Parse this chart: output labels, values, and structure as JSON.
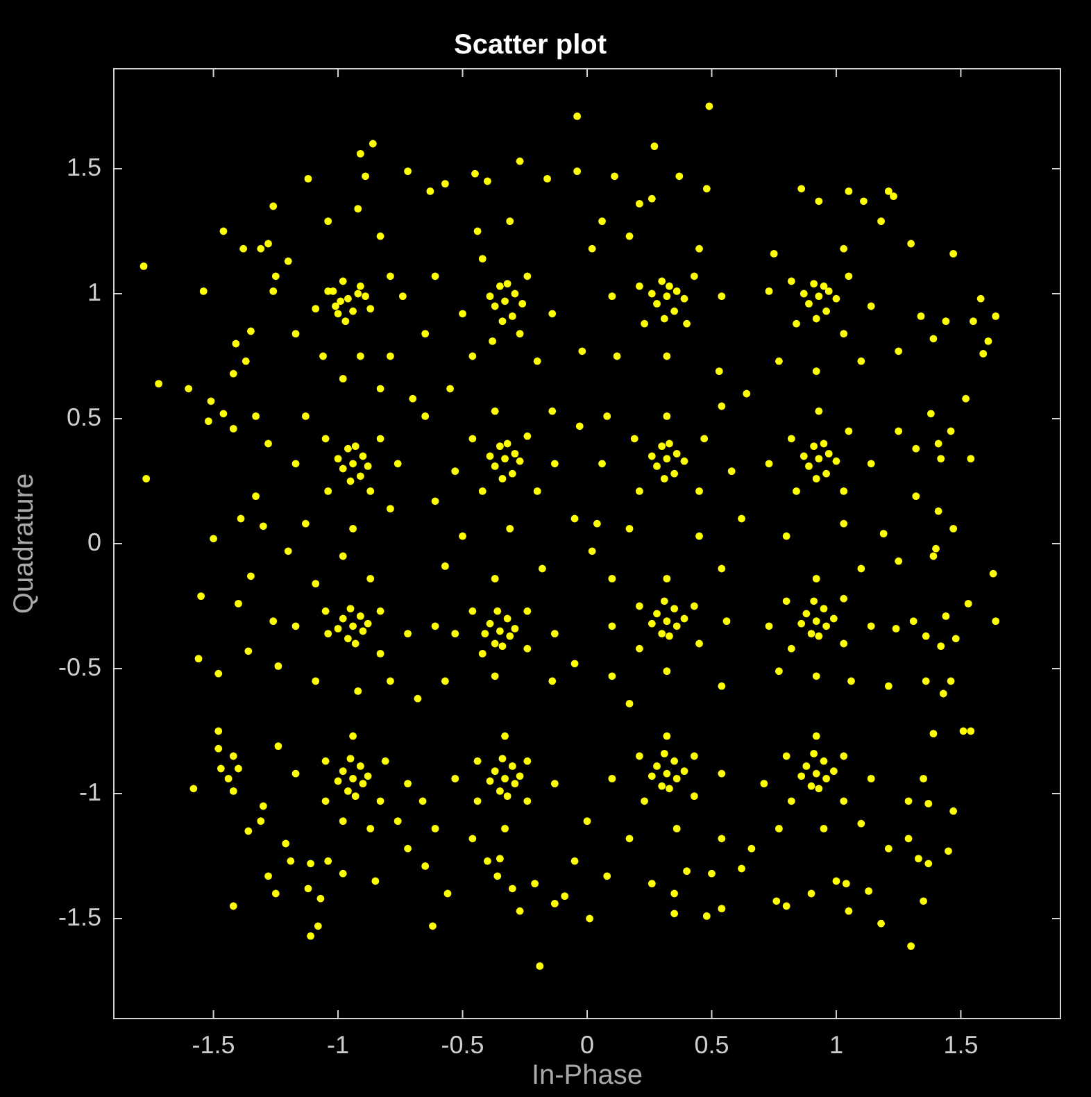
{
  "chart_data": {
    "type": "scatter",
    "title": "Scatter plot",
    "xlabel": "In-Phase",
    "ylabel": "Quadrature",
    "xlim": [
      -1.9,
      1.9
    ],
    "ylim": [
      -1.9,
      1.9
    ],
    "xticks": [
      -1.5,
      -1,
      -0.5,
      0,
      0.5,
      1,
      1.5
    ],
    "yticks": [
      -1.5,
      -1,
      -0.5,
      0,
      0.5,
      1,
      1.5
    ],
    "marker": "circle",
    "series": [
      {
        "color": "#ffff00",
        "x": [
          -0.86,
          -0.91,
          -1.12,
          -0.89,
          -0.92,
          -1.26,
          -1.46,
          -1.38,
          -1.31,
          -1.28,
          -1.78,
          -1.54,
          -1.2,
          -1.25,
          -1.04,
          -0.83,
          -0.96,
          -1.04,
          -0.91,
          -1,
          -0.87,
          -1.09,
          -0.79,
          -0.74,
          -1.26,
          -1.17,
          -1.06,
          -0.91,
          -0.79,
          -1.35,
          -1.41,
          -1.72,
          -1.6,
          -1.37,
          -1.42,
          -1.01,
          -0.92,
          -0.98,
          -0.94,
          -1.02,
          -0.89,
          -0.97,
          -0.99,
          -0.72,
          -0.45,
          -0.4,
          -0.27,
          -0.04,
          -0.16,
          -0.63,
          -0.57,
          -0.33,
          -0.42,
          -0.24,
          -0.5,
          -0.27,
          -0.38,
          -0.14,
          -0.61,
          -0.65,
          -0.31,
          -0.44,
          -0.46,
          -0.2,
          -0.55,
          -0.02,
          -0.04,
          -0.37,
          -0.29,
          -0.35,
          -0.3,
          -0.39,
          -0.26,
          -0.34,
          -0.32,
          0.27,
          0.11,
          0.37,
          0.48,
          0.26,
          0.21,
          0.32,
          0.21,
          0.43,
          0.23,
          0.4,
          0.1,
          0.54,
          0.17,
          0.45,
          0.32,
          0.12,
          0.53,
          0.64,
          0.06,
          0.02,
          0.49,
          0.28,
          0.36,
          0.3,
          0.35,
          0.26,
          0.39,
          0.31,
          0.33,
          0.86,
          1.05,
          1.21,
          1.23,
          1.11,
          0.93,
          0.93,
          0.82,
          1.05,
          0.84,
          1.03,
          1.14,
          0.73,
          0.75,
          1.03,
          1.18,
          1.3,
          1.47,
          1.58,
          1.64,
          1.55,
          1.61,
          1.59,
          1.39,
          1.44,
          1.34,
          1.25,
          1.1,
          0.92,
          0.77,
          0.89,
          0.97,
          0.91,
          0.96,
          0.87,
          1,
          0.92,
          0.95,
          -0.94,
          -1.05,
          -0.83,
          -1.04,
          -0.87,
          -1.13,
          -1.17,
          -0.76,
          -1.28,
          -1.33,
          -1.42,
          -1.52,
          -1.51,
          -1.46,
          -1.77,
          -1.33,
          -1.3,
          -1.5,
          -1.39,
          -1.13,
          -0.94,
          -0.79,
          -0.7,
          -0.83,
          -0.98,
          -0.98,
          -0.9,
          -0.96,
          -0.91,
          -1,
          -0.88,
          -0.95,
          -0.93,
          -0.33,
          -0.46,
          -0.24,
          -0.42,
          -0.2,
          -0.53,
          -0.13,
          -0.37,
          -0.14,
          -0.65,
          -0.61,
          -0.31,
          -0.05,
          -0.03,
          -0.5,
          -0.37,
          -0.29,
          -0.35,
          -0.3,
          -0.39,
          -0.27,
          -0.34,
          -0.32,
          0.32,
          0.19,
          0.47,
          0.21,
          0.45,
          0.06,
          0.58,
          0.32,
          0.08,
          0.54,
          0.17,
          0.45,
          0.62,
          0.04,
          0.28,
          0.36,
          0.3,
          0.35,
          0.26,
          0.39,
          0.31,
          0.33,
          0.93,
          0.82,
          1.05,
          0.84,
          1.03,
          0.73,
          1.14,
          0.93,
          1.25,
          1.32,
          1.41,
          1.42,
          1.54,
          1.46,
          1.38,
          1.52,
          1.32,
          1.41,
          1.47,
          1.19,
          1.03,
          0.8,
          0.89,
          0.97,
          0.91,
          0.96,
          0.87,
          1,
          0.92,
          0.95,
          -0.94,
          -1.05,
          -0.83,
          -1.04,
          -0.83,
          -1.17,
          -0.72,
          -1.09,
          -0.87,
          -1.55,
          -1.4,
          -1.35,
          -1.56,
          -1.48,
          -1.36,
          -1.26,
          -1.24,
          -1.09,
          -0.92,
          -0.79,
          -1.2,
          -0.98,
          -0.98,
          -0.9,
          -0.96,
          -0.91,
          -1,
          -0.88,
          -0.95,
          -0.93,
          -0.94,
          -1.05,
          -0.81,
          -1.05,
          -0.83,
          -1.17,
          -0.72,
          -0.94,
          -0.98,
          -1.24,
          -1.48,
          -1.48,
          -1.42,
          -1.47,
          -1.4,
          -1.44,
          -1.58,
          -1.42,
          -1.3,
          -1.31,
          -1.36,
          -1.21,
          -1.28,
          -1.25,
          -1.19,
          -1.11,
          -1.12,
          -1.07,
          -1.42,
          -1.08,
          -1.11,
          -1.04,
          -0.98,
          -0.85,
          -0.87,
          -0.76,
          -0.72,
          -0.98,
          -0.9,
          -0.96,
          -0.91,
          -1,
          -0.88,
          -0.95,
          -0.93,
          -0.35,
          -0.46,
          -0.24,
          -0.42,
          -0.24,
          -0.53,
          -0.13,
          -0.37,
          -0.57,
          -0.18,
          -0.61,
          -0.37,
          -0.14,
          -0.57,
          -0.05,
          -0.68,
          -0.39,
          -0.31,
          -0.37,
          -0.32,
          -0.41,
          -0.29,
          -0.36,
          -0.34,
          -0.33,
          -0.44,
          -0.24,
          -0.44,
          -0.24,
          -0.53,
          -0.13,
          -0.33,
          -0.33,
          -0.46,
          -0.35,
          -0.4,
          -0.65,
          -0.56,
          -0.62,
          -0.36,
          -0.27,
          -0.3,
          -0.21,
          -0.13,
          -0.09,
          0.01,
          -0.05,
          -0.61,
          -0.66,
          0,
          -0.19,
          -0.37,
          -0.29,
          -0.35,
          -0.3,
          -0.39,
          -0.27,
          -0.34,
          -0.32,
          0.32,
          0.21,
          0.43,
          0.21,
          0.45,
          0.1,
          0.56,
          0.32,
          0.1,
          0.54,
          0.32,
          0.1,
          0.54,
          0.02,
          0.17,
          0.28,
          0.36,
          0.3,
          0.35,
          0.26,
          0.39,
          0.31,
          0.33,
          0.92,
          0.8,
          1.03,
          0.82,
          1.03,
          0.73,
          1.14,
          0.92,
          1.1,
          1.25,
          1.39,
          1.4,
          1.63,
          1.53,
          1.44,
          1.64,
          1.48,
          1.36,
          1.42,
          1.31,
          1.24,
          1.36,
          1.46,
          1.43,
          1.21,
          1.06,
          0.92,
          0.77,
          0.88,
          0.96,
          0.9,
          0.95,
          0.86,
          0.99,
          0.91,
          0.93,
          0.32,
          0.21,
          0.43,
          0.23,
          0.43,
          0.1,
          0.54,
          0.32,
          0.36,
          0.17,
          0.54,
          0.08,
          0.26,
          0.35,
          0.4,
          0.35,
          0.48,
          0.54,
          0.5,
          0.62,
          0.66,
          0.28,
          0.36,
          0.3,
          0.35,
          0.26,
          0.39,
          0.31,
          0.33,
          0.92,
          0.8,
          1.03,
          0.82,
          1.03,
          0.71,
          1.14,
          0.92,
          0.95,
          1.1,
          0.77,
          1.21,
          1.29,
          1.37,
          1.47,
          1.45,
          1.33,
          1.37,
          1.35,
          1.13,
          1.04,
          1,
          0.9,
          1.05,
          1.18,
          1.3,
          0.8,
          0.76,
          1.29,
          1.51,
          1.54,
          1.39,
          1.35,
          0.88,
          0.96,
          0.9,
          0.95,
          0.86,
          0.99,
          0.91,
          0.93
        ],
        "values": [
          1.6,
          1.56,
          1.46,
          1.47,
          1.34,
          1.35,
          1.25,
          1.18,
          1.18,
          1.2,
          1.11,
          1.01,
          1.13,
          1.07,
          1.29,
          1.23,
          0.98,
          1.01,
          1.03,
          0.92,
          0.94,
          0.94,
          1.07,
          0.99,
          1.01,
          0.84,
          0.75,
          0.75,
          0.75,
          0.85,
          0.8,
          0.64,
          0.62,
          0.73,
          0.68,
          0.95,
          1,
          1.05,
          0.93,
          1.01,
          0.99,
          0.89,
          0.97,
          1.49,
          1.48,
          1.45,
          1.53,
          1.49,
          1.46,
          1.41,
          1.44,
          0.97,
          1.14,
          1.07,
          0.92,
          0.84,
          0.81,
          0.92,
          1.07,
          0.84,
          1.29,
          1.25,
          0.75,
          0.73,
          0.62,
          0.77,
          1.71,
          0.95,
          1,
          1.03,
          0.91,
          0.99,
          0.96,
          0.89,
          1.04,
          1.59,
          1.47,
          1.47,
          1.42,
          1.38,
          1.36,
          0.99,
          1.03,
          1.07,
          0.88,
          0.88,
          0.99,
          0.99,
          1.23,
          1.18,
          0.75,
          0.75,
          0.69,
          0.6,
          1.29,
          1.18,
          1.75,
          0.96,
          1.01,
          1.05,
          0.93,
          1,
          0.98,
          0.9,
          1.03,
          1.42,
          1.41,
          1.41,
          1.39,
          1.37,
          1.37,
          0.99,
          1.05,
          1.07,
          0.88,
          0.84,
          0.95,
          1.01,
          1.16,
          1.18,
          1.29,
          1.2,
          1.16,
          0.98,
          0.91,
          0.89,
          0.81,
          0.76,
          0.82,
          0.89,
          0.91,
          0.77,
          0.73,
          0.69,
          0.73,
          0.96,
          1.01,
          1.04,
          0.93,
          1,
          0.98,
          0.9,
          1.03,
          0.32,
          0.42,
          0.42,
          0.21,
          0.21,
          0.51,
          0.32,
          0.32,
          0.4,
          0.51,
          0.46,
          0.49,
          0.57,
          0.52,
          0.26,
          0.19,
          0.07,
          0.02,
          0.1,
          0.08,
          0.06,
          0.14,
          0.58,
          0.62,
          0.66,
          0.3,
          0.35,
          0.38,
          0.27,
          0.34,
          0.31,
          0.25,
          0.39,
          0.34,
          0.42,
          0.43,
          0.21,
          0.21,
          0.29,
          0.32,
          0.53,
          0.53,
          0.51,
          0.17,
          0.06,
          0.1,
          0.47,
          0.03,
          0.31,
          0.36,
          0.39,
          0.28,
          0.35,
          0.33,
          0.26,
          0.4,
          0.34,
          0.42,
          0.42,
          0.21,
          0.21,
          0.32,
          0.29,
          0.51,
          0.51,
          0.55,
          0.06,
          0.03,
          0.1,
          0.08,
          0.31,
          0.36,
          0.39,
          0.28,
          0.35,
          0.33,
          0.26,
          0.4,
          0.34,
          0.42,
          0.45,
          0.21,
          0.21,
          0.32,
          0.32,
          0.53,
          0.45,
          0.38,
          0.4,
          0.34,
          0.34,
          0.45,
          0.52,
          0.58,
          0.19,
          0.13,
          0.06,
          0.04,
          0.08,
          0.03,
          0.31,
          0.36,
          0.39,
          0.28,
          0.35,
          0.33,
          0.26,
          0.4,
          -0.33,
          -0.27,
          -0.27,
          -0.36,
          -0.44,
          -0.33,
          -0.36,
          -0.16,
          -0.14,
          -0.21,
          -0.24,
          -0.13,
          -0.46,
          -0.52,
          -0.43,
          -0.31,
          -0.49,
          -0.55,
          -0.59,
          -0.55,
          -0.03,
          -0.05,
          -0.3,
          -0.35,
          -0.38,
          -0.29,
          -0.34,
          -0.32,
          -0.26,
          -0.4,
          -0.94,
          -0.87,
          -0.87,
          -1.03,
          -1.03,
          -0.92,
          -0.96,
          -0.77,
          -1.11,
          -0.81,
          -0.75,
          -0.82,
          -0.85,
          -0.9,
          -0.9,
          -0.94,
          -0.98,
          -0.99,
          -1.05,
          -1.11,
          -1.15,
          -1.2,
          -1.33,
          -1.4,
          -1.27,
          -1.28,
          -1.38,
          -1.42,
          -1.45,
          -1.53,
          -1.57,
          -1.27,
          -1.32,
          -1.35,
          -1.14,
          -1.11,
          -1.22,
          -0.91,
          -0.96,
          -0.99,
          -0.89,
          -0.95,
          -0.93,
          -0.86,
          -1.01,
          -0.35,
          -0.27,
          -0.27,
          -0.44,
          -0.42,
          -0.36,
          -0.36,
          -0.14,
          -0.09,
          -0.1,
          -0.33,
          -0.53,
          -0.55,
          -0.55,
          -0.48,
          -0.62,
          -0.32,
          -0.37,
          -0.4,
          -0.3,
          -0.36,
          -0.34,
          -0.27,
          -0.41,
          -0.94,
          -0.87,
          -0.87,
          -1.03,
          -1.03,
          -0.94,
          -0.96,
          -0.77,
          -1.14,
          -1.18,
          -1.26,
          -1.27,
          -1.29,
          -1.4,
          -1.53,
          -1.33,
          -1.47,
          -1.38,
          -1.36,
          -1.44,
          -1.41,
          -1.5,
          -1.27,
          -1.14,
          -1.03,
          -1.11,
          -1.69,
          -0.91,
          -0.96,
          -0.99,
          -0.89,
          -0.95,
          -0.93,
          -0.86,
          -1.01,
          -0.31,
          -0.25,
          -0.25,
          -0.42,
          -0.4,
          -0.33,
          -0.31,
          -0.14,
          -0.14,
          -0.1,
          -0.51,
          -0.53,
          -0.57,
          -0.03,
          -0.64,
          -0.28,
          -0.33,
          -0.36,
          -0.26,
          -0.32,
          -0.3,
          -0.23,
          -0.37,
          -0.31,
          -0.23,
          -0.22,
          -0.42,
          -0.4,
          -0.33,
          -0.33,
          -0.14,
          -0.1,
          -0.07,
          -0.05,
          -0.02,
          -0.12,
          -0.24,
          -0.29,
          -0.31,
          -0.38,
          -0.37,
          -0.41,
          -0.31,
          -0.34,
          -0.55,
          -0.55,
          -0.6,
          -0.57,
          -0.55,
          -0.53,
          -0.51,
          -0.28,
          -0.33,
          -0.36,
          -0.26,
          -0.32,
          -0.3,
          -0.23,
          -0.37,
          -0.92,
          -0.85,
          -0.85,
          -1.03,
          -1.01,
          -0.94,
          -0.92,
          -0.77,
          -1.14,
          -1.18,
          -1.18,
          -1.33,
          -1.36,
          -1.4,
          -1.31,
          -1.48,
          -1.49,
          -1.46,
          -1.32,
          -1.3,
          -1.22,
          -0.89,
          -0.94,
          -0.97,
          -0.87,
          -0.93,
          -0.91,
          -0.84,
          -0.98,
          -0.92,
          -0.85,
          -0.85,
          -1.03,
          -1.03,
          -0.96,
          -0.94,
          -0.77,
          -1.14,
          -1.12,
          -1.14,
          -1.22,
          -1.18,
          -1.04,
          -1.07,
          -1.23,
          -1.26,
          -1.28,
          -1.43,
          -1.39,
          -1.36,
          -1.35,
          -1.4,
          -1.47,
          -1.52,
          -1.61,
          -1.45,
          -1.43,
          -1.03,
          -0.75,
          -0.75,
          -0.76,
          -0.94,
          -0.89,
          -0.94,
          -0.97,
          -0.87,
          -0.93,
          -0.91,
          -0.84,
          -0.98
        ]
      }
    ]
  }
}
